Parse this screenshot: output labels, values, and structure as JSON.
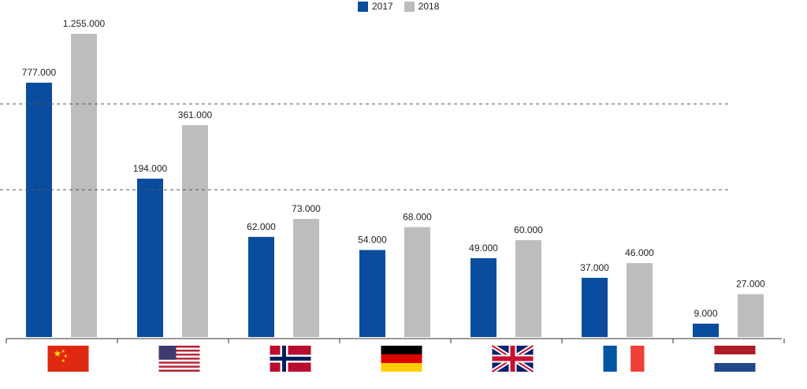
{
  "legend": {
    "series_2017": "2017",
    "series_2018": "2018"
  },
  "chart_data": {
    "type": "bar",
    "categories": [
      "China",
      "United States",
      "Norway",
      "Germany",
      "United Kingdom",
      "France",
      "Netherlands"
    ],
    "category_icons": [
      "china-flag-icon",
      "usa-flag-icon",
      "norway-flag-icon",
      "germany-flag-icon",
      "uk-flag-icon",
      "france-flag-icon",
      "netherlands-flag-icon"
    ],
    "series": [
      {
        "name": "2017",
        "color": "#0a4d9e",
        "values": [
          777000,
          194000,
          62000,
          54000,
          49000,
          37000,
          9000
        ],
        "labels": [
          "777.000",
          "194.000",
          "62.000",
          "54.000",
          "49.000",
          "37.000",
          "9.000"
        ]
      },
      {
        "name": "2018",
        "color": "#bdbdbd",
        "values": [
          1255000,
          361000,
          73000,
          68000,
          60000,
          46000,
          27000
        ],
        "labels": [
          "1.255.000",
          "361.000",
          "73.000",
          "68.000",
          "60.000",
          "46.000",
          "27.000"
        ]
      }
    ],
    "axis_break": "dashed lines indicate broken y-axis scale",
    "grid": false,
    "legend_position": "top-center"
  }
}
